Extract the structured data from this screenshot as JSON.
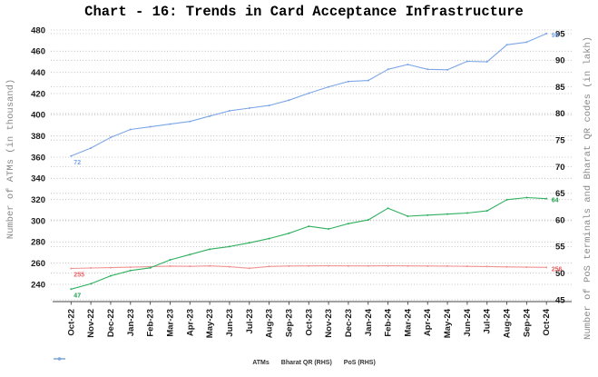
{
  "chart_data": {
    "type": "line",
    "title": "Chart - 16: Trends in Card Acceptance Infrastructure",
    "ylabel_left": "Number of ATMs (in thousand)",
    "ylabel_right": "Number of PoS terminals and Bharat QR codes (in lakh)",
    "categories": [
      "Oct-22",
      "Nov-22",
      "Dec-22",
      "Jan-23",
      "Feb-23",
      "Mar-23",
      "Apr-23",
      "May-23",
      "Jun-23",
      "Jul-23",
      "Aug-23",
      "Sep-23",
      "Oct-23",
      "Nov-23",
      "Dec-23",
      "Jan-24",
      "Feb-24",
      "Mar-24",
      "Apr-24",
      "May-24",
      "Jun-24",
      "Jul-24",
      "Aug-24",
      "Sep-24",
      "Oct-24"
    ],
    "left_axis": {
      "min": 240,
      "max": 480,
      "step": 20,
      "ticks": [
        240,
        260,
        280,
        300,
        320,
        340,
        360,
        380,
        400,
        420,
        440,
        460,
        480
      ]
    },
    "right_axis": {
      "min": 45,
      "max": 95,
      "step": 5,
      "ticks": [
        45,
        50,
        55,
        60,
        65,
        70,
        75,
        80,
        85,
        90,
        95
      ]
    },
    "grid": "dotted-horizontal-both-axes",
    "legend_position": "bottom-center",
    "series": [
      {
        "name": "ATMs",
        "axis": "left",
        "color": "#f09393",
        "label_color": "#e96060",
        "start_label": "255",
        "end_label": "256",
        "values": [
          255,
          255.4,
          255.8,
          256.2,
          256.6,
          257.2,
          257,
          257.4,
          256.6,
          255.2,
          256.9,
          257.3,
          257.4,
          257.5,
          257.4,
          257.4,
          257.5,
          257.4,
          257.3,
          257.2,
          257,
          256.8,
          256.5,
          256.2,
          256
        ]
      },
      {
        "name": "Bharat QR (RHS)",
        "axis": "right",
        "color": "#2fb05f",
        "label_color": "#1da24d",
        "start_label": "47",
        "end_label": "64",
        "values": [
          47,
          48,
          49.5,
          50.5,
          51,
          52.5,
          53.5,
          54.5,
          55,
          55.7,
          56.5,
          57.5,
          58.8,
          58.3,
          59.3,
          60,
          62.2,
          60.7,
          60.9,
          61.1,
          61.3,
          61.7,
          63.8,
          64.2,
          64
        ]
      },
      {
        "name": "PoS (RHS)",
        "axis": "right",
        "color": "#7ca6e8",
        "label_color": "#79a6ee",
        "start_label": "72",
        "end_label": "95",
        "values": [
          72,
          73.5,
          75.5,
          77,
          77.5,
          78,
          78.5,
          79.5,
          80.5,
          81,
          81.5,
          82.5,
          83.8,
          85,
          86,
          86.2,
          88.3,
          89.2,
          88.3,
          88.2,
          89.8,
          89.7,
          92.9,
          93.4,
          95
        ]
      }
    ]
  }
}
